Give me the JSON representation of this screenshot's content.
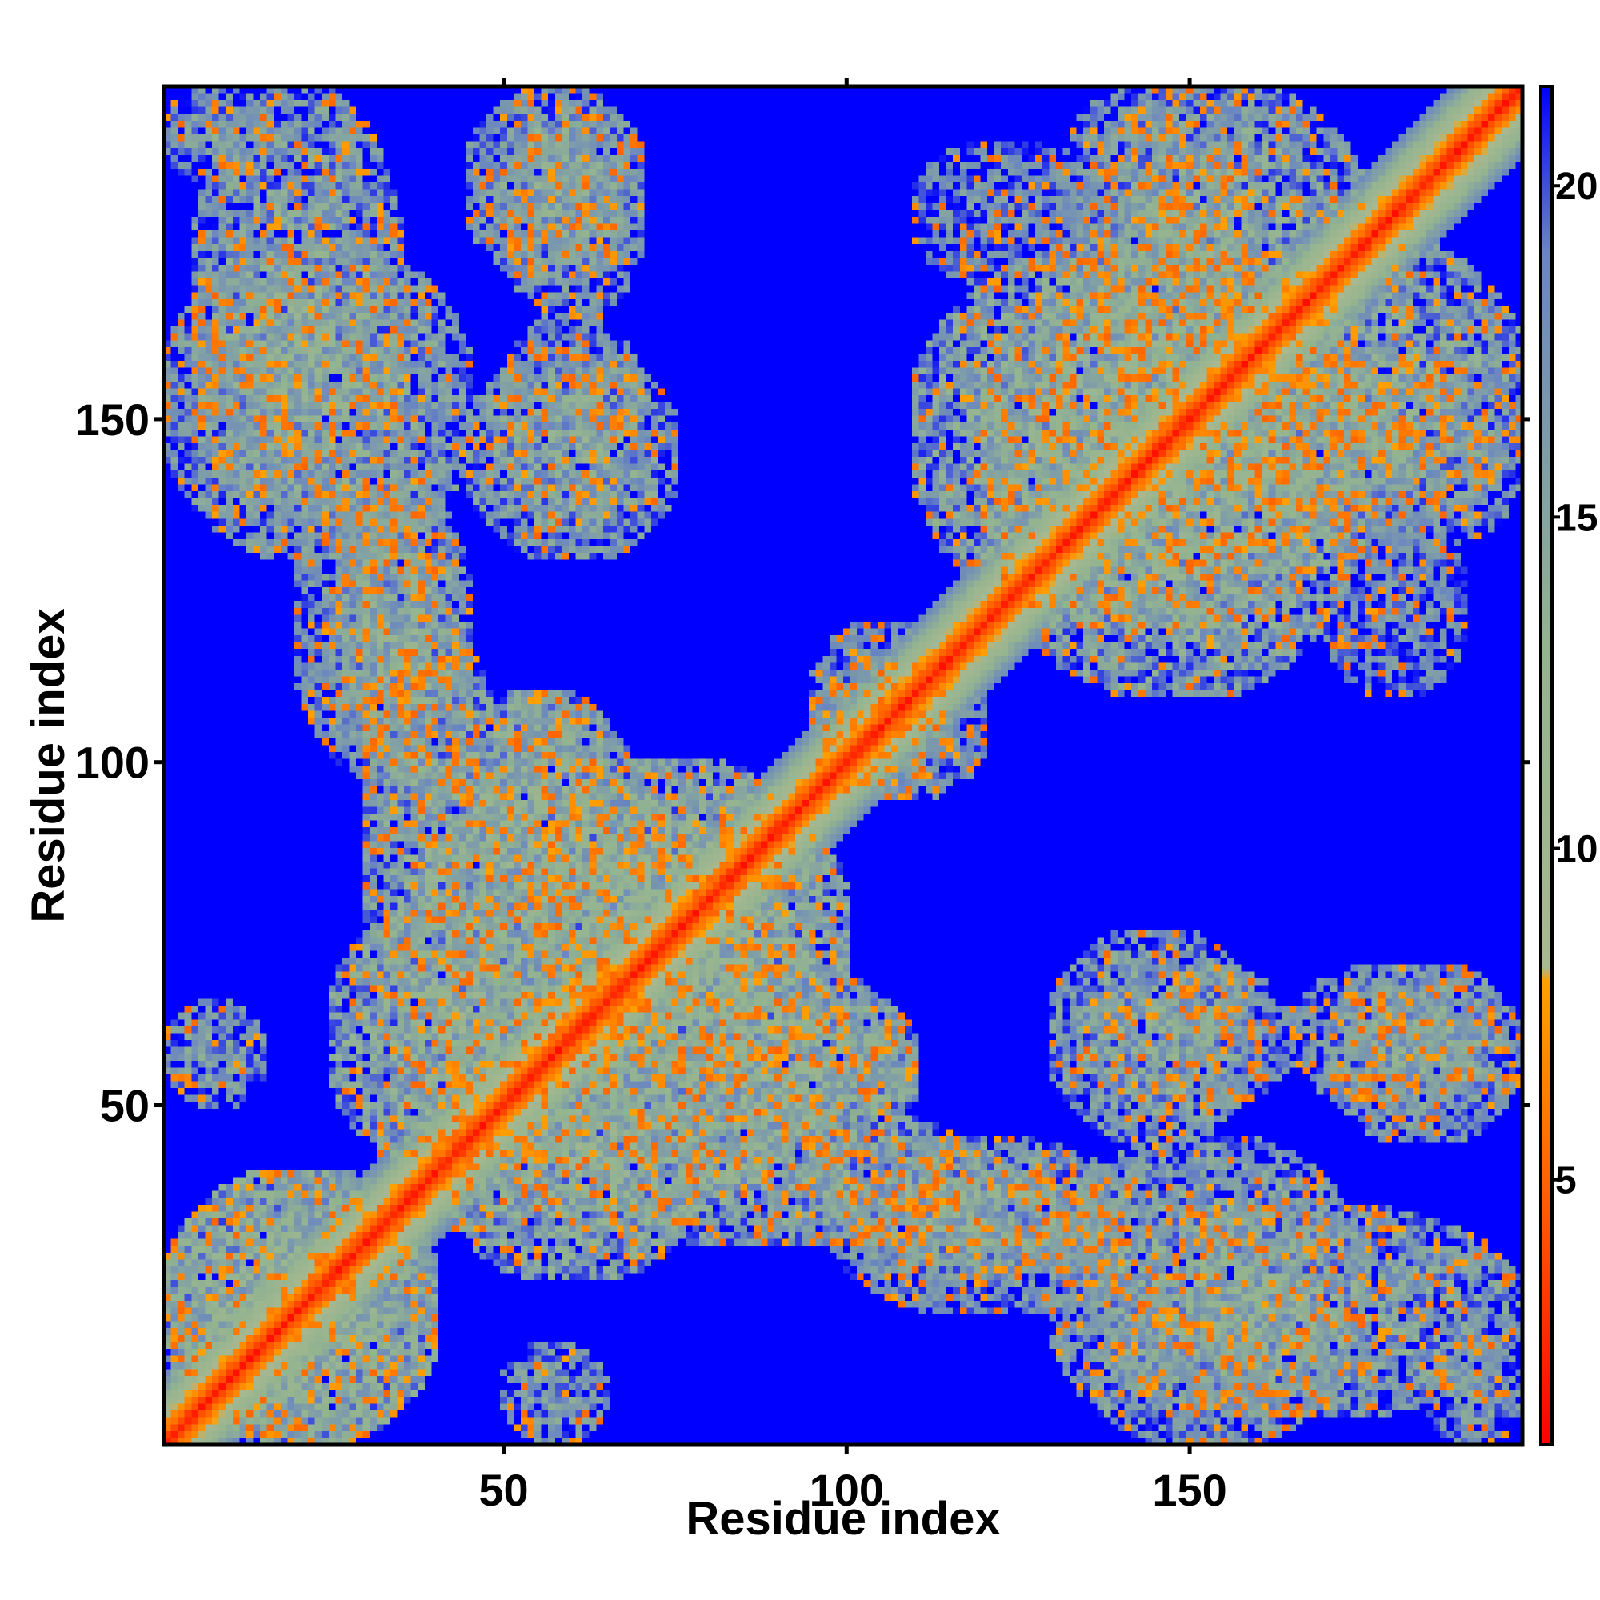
{
  "chart_data": {
    "type": "heatmap",
    "title": "",
    "xlabel": "Residue index",
    "ylabel": "Residue index",
    "n_residues": 198,
    "xlim": [
      0.5,
      198.5
    ],
    "ylim": [
      0.5,
      198.5
    ],
    "x_ticks": [
      50,
      100,
      150
    ],
    "y_ticks": [
      50,
      100,
      150
    ],
    "x_tick_labels": [
      "50",
      "100",
      "150"
    ],
    "y_tick_labels": [
      "50",
      "100",
      "150"
    ],
    "value_description": "pairwise residue distance",
    "colorbar": {
      "range": [
        1,
        21.5
      ],
      "ticks": [
        5,
        10,
        15,
        20
      ],
      "tick_labels": [
        "5",
        "10",
        "15",
        "20"
      ],
      "stops": [
        {
          "value": 1.0,
          "color": "#ff0000"
        },
        {
          "value": 4.5,
          "color": "#ff5a00"
        },
        {
          "value": 8.0,
          "color": "#ffa000"
        },
        {
          "value": 8.2,
          "color": "#a8b890"
        },
        {
          "value": 13.0,
          "color": "#94b490"
        },
        {
          "value": 19.0,
          "color": "#6a86c0"
        },
        {
          "value": 21.5,
          "color": "#0000ff"
        }
      ],
      "saturation_color": "#0000ff"
    },
    "diagonal": {
      "core_distance": 1.5,
      "band_width_residues": 10
    },
    "contact_regions": [
      {
        "x": [
          1,
          40
        ],
        "y": [
          1,
          40
        ],
        "mean": 14
      },
      {
        "x": [
          5,
          35
        ],
        "y": [
          135,
          198
        ],
        "mean": 15
      },
      {
        "x": [
          45,
          70
        ],
        "y": [
          170,
          198
        ],
        "mean": 15
      },
      {
        "x": [
          45,
          75
        ],
        "y": [
          130,
          160
        ],
        "mean": 15
      },
      {
        "x": [
          25,
          45
        ],
        "y": [
          95,
          140
        ],
        "mean": 15
      },
      {
        "x": [
          45,
          65
        ],
        "y": [
          80,
          110
        ],
        "mean": 15
      },
      {
        "x": [
          25,
          65
        ],
        "y": [
          40,
          80
        ],
        "mean": 14
      },
      {
        "x": [
          55,
          95
        ],
        "y": [
          60,
          100
        ],
        "mean": 14
      },
      {
        "x": [
          65,
          110
        ],
        "y": [
          40,
          70
        ],
        "mean": 14
      },
      {
        "x": [
          50,
          120
        ],
        "y": [
          30,
          50
        ],
        "mean": 15
      },
      {
        "x": [
          100,
          140
        ],
        "y": [
          20,
          40
        ],
        "mean": 16
      },
      {
        "x": [
          130,
          175
        ],
        "y": [
          1,
          45
        ],
        "mean": 15
      },
      {
        "x": [
          135,
          165
        ],
        "y": [
          50,
          70
        ],
        "mean": 16
      },
      {
        "x": [
          165,
          195
        ],
        "y": [
          50,
          70
        ],
        "mean": 16
      },
      {
        "x": [
          185,
          198
        ],
        "y": [
          1,
          15
        ],
        "mean": 16
      },
      {
        "x": [
          120,
          175
        ],
        "y": [
          110,
          175
        ],
        "mean": 14
      },
      {
        "x": [
          135,
          175
        ],
        "y": [
          160,
          198
        ],
        "mean": 15
      },
      {
        "x": [
          160,
          198
        ],
        "y": [
          130,
          160
        ],
        "mean": 16
      },
      {
        "x": [
          110,
          135
        ],
        "y": [
          170,
          190
        ],
        "mean": 17
      },
      {
        "x": [
          95,
          115
        ],
        "y": [
          95,
          120
        ],
        "mean": 16
      },
      {
        "x": [
          1,
          15
        ],
        "y": [
          50,
          65
        ],
        "mean": 16
      }
    ]
  }
}
